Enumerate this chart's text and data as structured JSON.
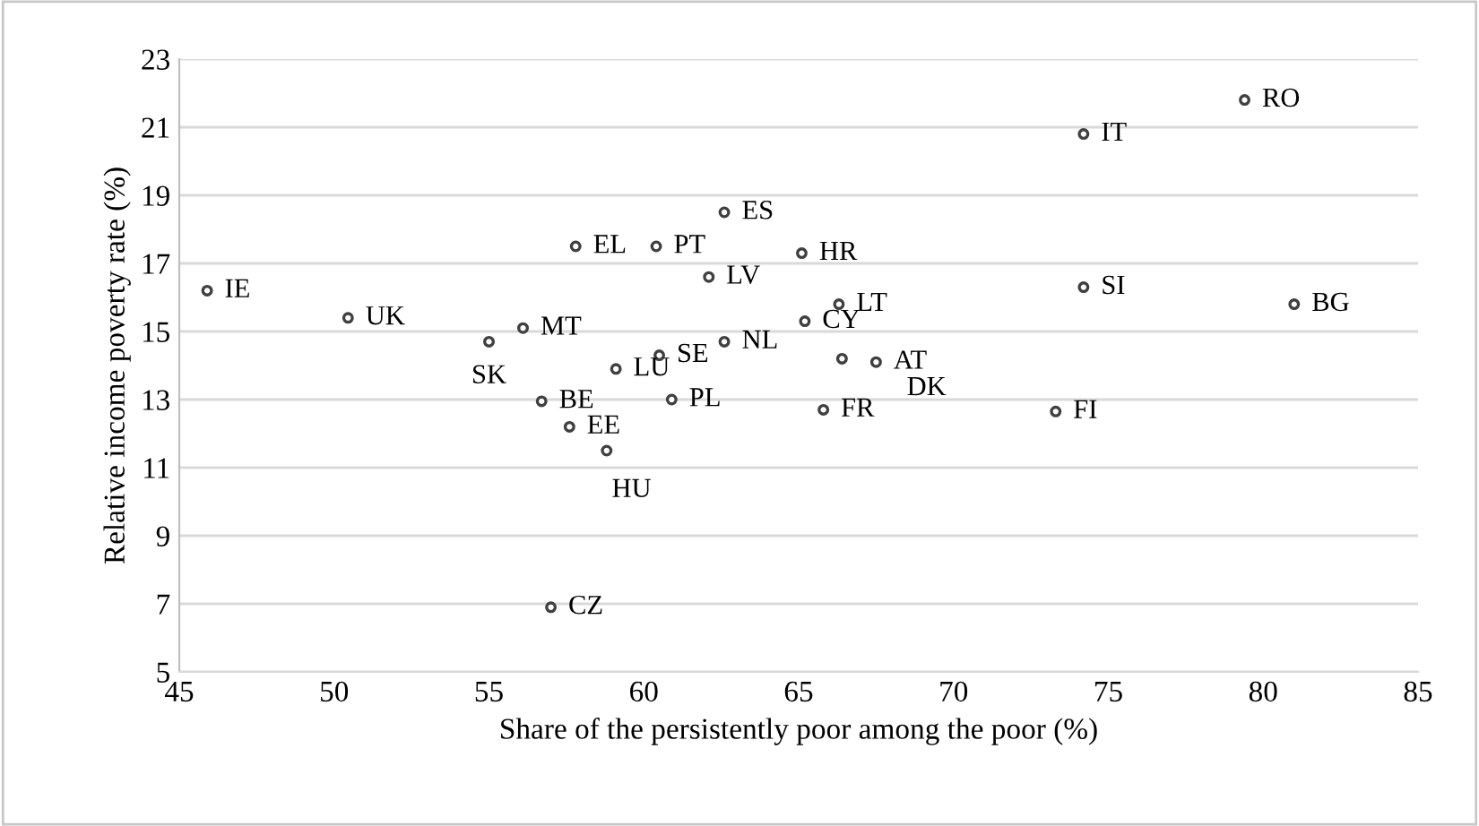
{
  "chart_data": {
    "type": "scatter",
    "xlabel": "Share of the persistently poor among the poor (%)",
    "ylabel": "Relative income poverty rate (%)",
    "x": [
      45.9,
      50.45,
      55.0,
      56.1,
      56.7,
      57.6,
      58.8,
      57.8,
      60.4,
      65.1,
      62.1,
      66.3,
      65.2,
      66.4,
      67.5,
      62.6,
      59.1,
      60.5,
      60.9,
      65.8,
      62.6,
      74.2,
      79.4,
      74.2,
      81.0,
      73.3,
      57.0
    ],
    "series": [
      {
        "color": "#404040",
        "values": [
          16.2,
          15.4,
          14.7,
          15.1,
          12.95,
          12.2,
          11.5,
          17.5,
          17.5,
          17.3,
          16.6,
          15.8,
          15.3,
          14.2,
          14.1,
          14.7,
          13.9,
          14.3,
          13.0,
          12.7,
          18.5,
          20.8,
          21.8,
          16.3,
          15.8,
          12.65,
          6.9
        ]
      }
    ],
    "annotations": [
      {
        "text": "IE",
        "x": 45.9,
        "y": 16.2
      },
      {
        "text": "UK",
        "x": 50.45,
        "y": 15.4
      },
      {
        "text": "SK",
        "x": 55.0,
        "y": 14.7
      },
      {
        "text": "MT",
        "x": 56.1,
        "y": 15.1
      },
      {
        "text": "BE",
        "x": 56.7,
        "y": 12.95
      },
      {
        "text": "EE",
        "x": 57.6,
        "y": 12.2
      },
      {
        "text": "HU",
        "x": 58.8,
        "y": 11.5
      },
      {
        "text": "EL",
        "x": 57.8,
        "y": 17.5
      },
      {
        "text": "PT",
        "x": 60.4,
        "y": 17.5
      },
      {
        "text": "HR",
        "x": 65.1,
        "y": 17.3
      },
      {
        "text": "LV",
        "x": 62.1,
        "y": 16.6
      },
      {
        "text": "LT",
        "x": 66.3,
        "y": 15.8
      },
      {
        "text": "CY",
        "x": 65.2,
        "y": 15.3
      },
      {
        "text": "DK",
        "x": 66.4,
        "y": 14.2
      },
      {
        "text": "AT",
        "x": 67.5,
        "y": 14.1
      },
      {
        "text": "NL",
        "x": 62.6,
        "y": 14.7
      },
      {
        "text": "LU",
        "x": 59.1,
        "y": 13.9
      },
      {
        "text": "SE",
        "x": 60.5,
        "y": 14.3
      },
      {
        "text": "PL",
        "x": 60.9,
        "y": 13.0
      },
      {
        "text": "FR",
        "x": 65.8,
        "y": 12.7
      },
      {
        "text": "ES",
        "x": 62.6,
        "y": 18.5
      },
      {
        "text": "IT",
        "x": 74.2,
        "y": 20.8
      },
      {
        "text": "RO",
        "x": 79.4,
        "y": 21.8
      },
      {
        "text": "SI",
        "x": 74.2,
        "y": 16.3
      },
      {
        "text": "BG",
        "x": 81.0,
        "y": 15.8
      },
      {
        "text": "FI",
        "x": 73.3,
        "y": 12.65
      },
      {
        "text": "CZ",
        "x": 57.0,
        "y": 6.9
      }
    ],
    "xlim": [
      45,
      85
    ],
    "xticks": [
      45,
      50,
      55,
      60,
      65,
      70,
      75,
      80,
      85
    ],
    "ylim": [
      5,
      23
    ],
    "yticks": [
      5,
      7,
      9,
      11,
      13,
      15,
      17,
      19,
      21,
      23
    ],
    "grid": "y",
    "marker": "circle"
  }
}
